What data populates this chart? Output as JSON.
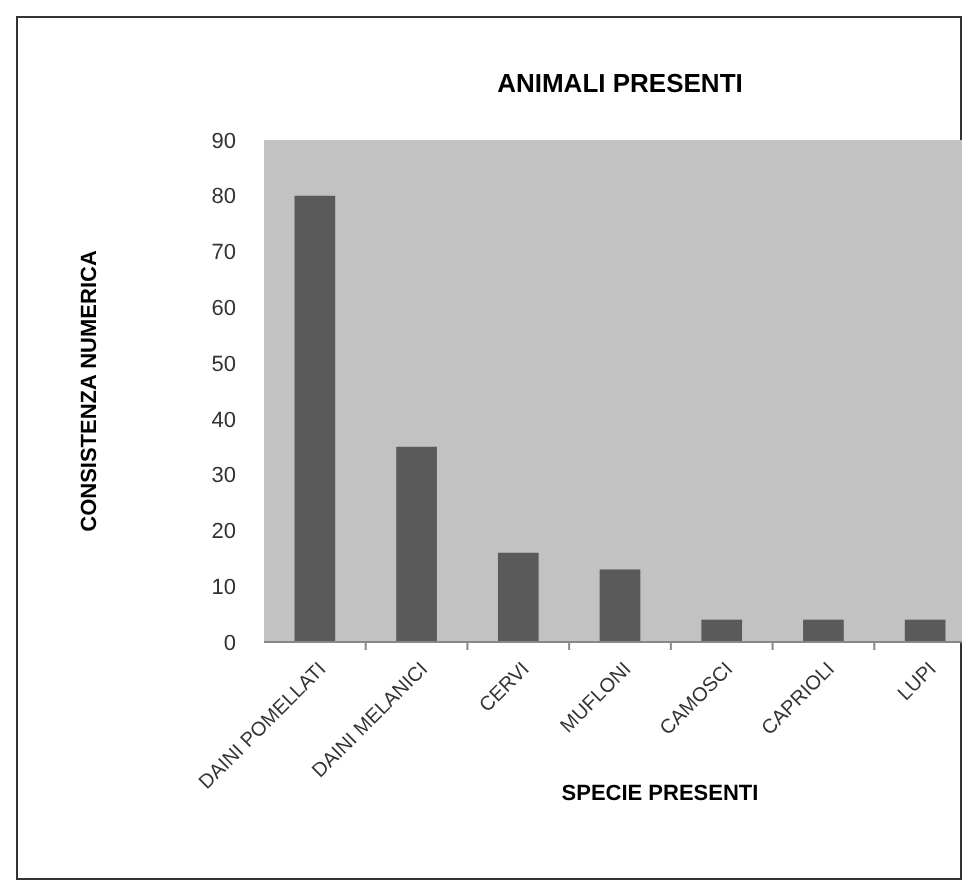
{
  "chart_data": {
    "type": "bar",
    "title": "ANIMALI PRESENTI",
    "xlabel": "SPECIE PRESENTI",
    "ylabel": "CONSISTENZA NUMERICA",
    "categories": [
      "DAINI POMELLATI",
      "DAINI MELANICI",
      "CERVI",
      "MUFLONI",
      "CAMOSCI",
      "CAPRIOLI",
      "LUPI"
    ],
    "values": [
      80,
      35,
      16,
      13,
      4,
      4,
      4
    ],
    "color": "#5a5a5a",
    "ylim": [
      0,
      90
    ],
    "yticks": [
      0,
      10,
      20,
      30,
      40,
      50,
      60,
      70,
      80,
      90
    ],
    "grid": false
  }
}
